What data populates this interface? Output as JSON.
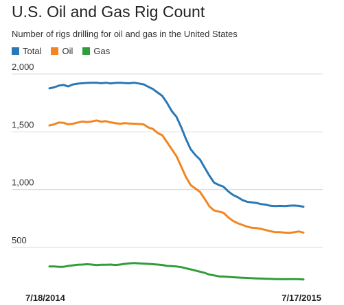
{
  "title": "U.S. Oil and Gas Rig Count",
  "subtitle": "Number of rigs drilling for oil and gas in the United States",
  "chart_data": {
    "type": "line",
    "title": "U.S. Oil and Gas Rig Count",
    "subtitle": "Number of rigs drilling for oil and gas in the United States",
    "xlabel": "",
    "ylabel": "",
    "x_start_label": "7/18/2014",
    "x_end_label": "7/17/2015",
    "ylim": [
      250,
      2000
    ],
    "yticks": [
      500,
      1000,
      1500,
      2000
    ],
    "ytick_labels": [
      "500",
      "1,000",
      "1,500",
      "2,000"
    ],
    "grid": true,
    "legend": "top-left",
    "series": [
      {
        "name": "Total",
        "color": "#2a78b5",
        "values": [
          1876,
          1885,
          1900,
          1905,
          1893,
          1910,
          1917,
          1920,
          1923,
          1925,
          1925,
          1920,
          1925,
          1918,
          1923,
          1925,
          1922,
          1920,
          1925,
          1918,
          1911,
          1890,
          1870,
          1840,
          1810,
          1750,
          1680,
          1630,
          1540,
          1440,
          1350,
          1300,
          1260,
          1190,
          1120,
          1060,
          1040,
          1025,
          985,
          955,
          935,
          910,
          895,
          890,
          885,
          875,
          870,
          860,
          857,
          859,
          857,
          861,
          862,
          859,
          852
        ]
      },
      {
        "name": "Oil",
        "color": "#f2851f",
        "values": [
          1555,
          1565,
          1580,
          1578,
          1565,
          1570,
          1580,
          1590,
          1585,
          1590,
          1598,
          1588,
          1592,
          1582,
          1575,
          1570,
          1575,
          1572,
          1570,
          1568,
          1565,
          1538,
          1525,
          1490,
          1470,
          1410,
          1350,
          1290,
          1200,
          1110,
          1040,
          1010,
          980,
          920,
          855,
          820,
          810,
          800,
          760,
          730,
          710,
          695,
          680,
          670,
          668,
          660,
          650,
          640,
          632,
          632,
          628,
          626,
          631,
          638,
          628
        ]
      },
      {
        "name": "Gas",
        "color": "#2f9e3a",
        "values": [
          335,
          335,
          332,
          333,
          340,
          345,
          350,
          352,
          355,
          352,
          347,
          350,
          350,
          352,
          348,
          352,
          358,
          362,
          365,
          362,
          360,
          358,
          355,
          352,
          348,
          340,
          338,
          335,
          330,
          320,
          310,
          300,
          290,
          280,
          265,
          258,
          250,
          248,
          245,
          242,
          240,
          238,
          236,
          234,
          232,
          231,
          229,
          228,
          226,
          226,
          225,
          226,
          226,
          225,
          223
        ]
      }
    ]
  }
}
